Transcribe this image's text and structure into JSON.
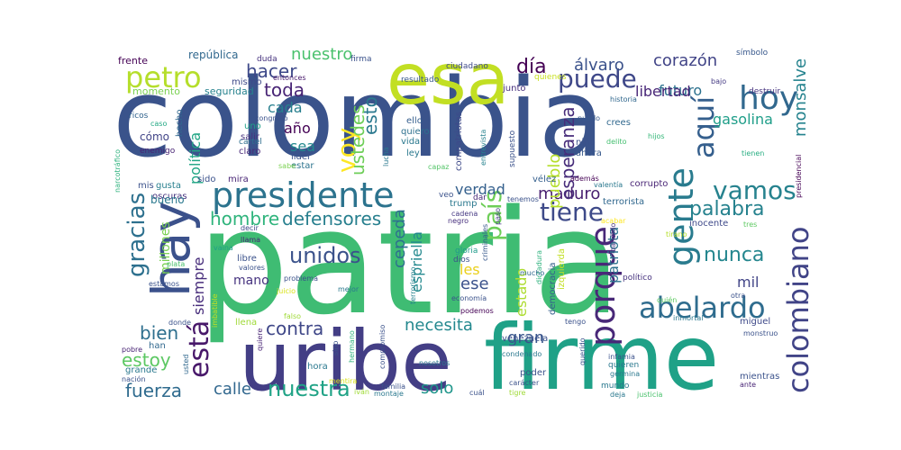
{
  "words": [
    {
      "text": "patria",
      "color": "#3fbc73"
    },
    {
      "text": "colombia",
      "color": "#3a538b"
    },
    {
      "text": "firme",
      "color": "#1fa187"
    },
    {
      "text": "uribe",
      "color": "#433e85"
    },
    {
      "text": "esa",
      "color": "#c2df23"
    },
    {
      "text": "presidente",
      "color": "#2c738e"
    },
    {
      "text": "hay",
      "color": "#3b518b"
    },
    {
      "text": "abelardo",
      "color": "#2f6c8e"
    },
    {
      "text": "gente",
      "color": "#297b8e"
    },
    {
      "text": "porque",
      "color": "#482878"
    },
    {
      "text": "hoy",
      "color": "#31688e"
    },
    {
      "text": "colombiano",
      "color": "#414487"
    },
    {
      "text": "petro",
      "color": "#b5de2b"
    },
    {
      "text": "puede",
      "color": "#3f4889"
    },
    {
      "text": "nuestra",
      "color": "#20a386"
    },
    {
      "text": "tiene",
      "color": "#3e4a89"
    },
    {
      "text": "vamos",
      "color": "#26828e"
    },
    {
      "text": "gracias",
      "color": "#2d708e"
    },
    {
      "text": "país",
      "color": "#6ece58"
    },
    {
      "text": "aquí",
      "color": "#355f8d"
    },
    {
      "text": "está",
      "color": "#48186a"
    },
    {
      "text": "palabra",
      "color": "#26828e"
    },
    {
      "text": "maduro",
      "color": "#481f70"
    },
    {
      "text": "voy",
      "color": "#fde725"
    },
    {
      "text": "esto",
      "color": "#2a788e"
    },
    {
      "text": "día",
      "color": "#440154"
    },
    {
      "text": "unidos",
      "color": "#3b528b"
    },
    {
      "text": "nunca",
      "color": "#24868e"
    },
    {
      "text": "hacer",
      "color": "#3e4989"
    },
    {
      "text": "toda",
      "color": "#482475"
    },
    {
      "text": "defensores",
      "color": "#277f8e"
    },
    {
      "text": "bien",
      "color": "#2e6f8e"
    },
    {
      "text": "hombre",
      "color": "#2fb47c"
    },
    {
      "text": "contra",
      "color": "#3f4788"
    },
    {
      "text": "necesita",
      "color": "#23888e"
    },
    {
      "text": "ustedes",
      "color": "#6ece58"
    },
    {
      "text": "esperanza",
      "color": "#472c7a"
    },
    {
      "text": "estoy",
      "color": "#5cc863"
    },
    {
      "text": "fuerza",
      "color": "#2f6b8e"
    },
    {
      "text": "calle",
      "color": "#31678e"
    },
    {
      "text": "solo",
      "color": "#1f968b"
    },
    {
      "text": "nuestro",
      "color": "#4ac16d"
    },
    {
      "text": "álvaro",
      "color": "#3b528b"
    },
    {
      "text": "corazón",
      "color": "#414487"
    },
    {
      "text": "monsalve",
      "color": "#25838e"
    },
    {
      "text": "futuro",
      "color": "#2c718e"
    },
    {
      "text": "libertad",
      "color": "#482677"
    },
    {
      "text": "gasolina",
      "color": "#1f9e89"
    },
    {
      "text": "pueblo",
      "color": "#b5de2b"
    },
    {
      "text": "verdad",
      "color": "#34608d"
    },
    {
      "text": "cepeda",
      "color": "#2d708e"
    },
    {
      "text": "espriella",
      "color": "#23898e"
    },
    {
      "text": "gran",
      "color": "#39568c"
    },
    {
      "text": "ese",
      "color": "#3b528b"
    },
    {
      "text": "les",
      "color": "#ead01a"
    },
    {
      "text": "política",
      "color": "#21a685"
    },
    {
      "text": "siempre",
      "color": "#472d7b"
    },
    {
      "text": "año",
      "color": "#440154"
    },
    {
      "text": "cada",
      "color": "#277f8e"
    },
    {
      "text": "sea",
      "color": "#23898e"
    },
    {
      "text": "patriota",
      "color": "#2c728e"
    },
    {
      "text": "estado",
      "color": "#addc30"
    },
    {
      "text": "mil",
      "color": "#414487"
    },
    {
      "text": "mano",
      "color": "#46337f"
    },
    {
      "text": "millones",
      "color": "#7ad151"
    },
    {
      "text": "república",
      "color": "#31688e"
    },
    {
      "text": "frente",
      "color": "#440154"
    },
    {
      "text": "seguridad",
      "color": "#26828e"
    },
    {
      "text": "momento",
      "color": "#7ad151"
    },
    {
      "text": "mismo",
      "color": "#3e4a89"
    },
    {
      "text": "duda",
      "color": "#46327e"
    },
    {
      "text": "firma",
      "color": "#3b528b"
    },
    {
      "text": "ciudadano",
      "color": "#3e4989"
    },
    {
      "text": "resultado",
      "color": "#38588c"
    },
    {
      "text": "quienes",
      "color": "#c8e020"
    },
    {
      "text": "junto",
      "color": "#472f7d"
    },
    {
      "text": "entonces",
      "color": "#48196b"
    },
    {
      "text": "gloria",
      "color": "#1f9a8a"
    },
    {
      "text": "dios",
      "color": "#3b528b"
    },
    {
      "text": "ley",
      "color": "#2a788e"
    },
    {
      "text": "vida",
      "color": "#2a788e"
    },
    {
      "text": "ello",
      "color": "#355e8d"
    },
    {
      "text": "quiero",
      "color": "#2d708e"
    },
    {
      "text": "niño",
      "color": "#3b518b"
    },
    {
      "text": "ahora",
      "color": "#38598c"
    },
    {
      "text": "crees",
      "color": "#31688e"
    },
    {
      "text": "puedo",
      "color": "#38598c"
    },
    {
      "text": "delito",
      "color": "#44bf70"
    },
    {
      "text": "hijos",
      "color": "#35b779"
    },
    {
      "text": "historia",
      "color": "#31688e"
    },
    {
      "text": "bajo",
      "color": "#443a83"
    },
    {
      "text": "símbolo",
      "color": "#38588c"
    },
    {
      "text": "destruir",
      "color": "#46337f"
    },
    {
      "text": "tienen",
      "color": "#27ad81"
    },
    {
      "text": "presidencial",
      "color": "#440154"
    },
    {
      "text": "cómo",
      "color": "#414487"
    },
    {
      "text": "hecho",
      "color": "#31688e"
    },
    {
      "text": "uno",
      "color": "#1fa088"
    },
    {
      "text": "salir",
      "color": "#46327e"
    },
    {
      "text": "cartel",
      "color": "#2e6e8e"
    },
    {
      "text": "claro",
      "color": "#482878"
    },
    {
      "text": "líder",
      "color": "#3b528b"
    },
    {
      "text": "estar",
      "color": "#2c738e"
    },
    {
      "text": "enemigo",
      "color": "#482475"
    },
    {
      "text": "ricos",
      "color": "#32648e"
    },
    {
      "text": "caso",
      "color": "#22a884"
    },
    {
      "text": "congreso",
      "color": "#3b528b"
    },
    {
      "text": "sido",
      "color": "#3b528b"
    },
    {
      "text": "mira",
      "color": "#482475"
    },
    {
      "text": "mis",
      "color": "#3b528b"
    },
    {
      "text": "gusta",
      "color": "#277f8e"
    },
    {
      "text": "oscuras",
      "color": "#46337f"
    },
    {
      "text": "bueno",
      "color": "#2a788e"
    },
    {
      "text": "narcotráfico",
      "color": "#2db27d"
    },
    {
      "text": "sabe",
      "color": "#7ad151"
    },
    {
      "text": "compatriotas",
      "color": "#3e4989"
    },
    {
      "text": "entrevista",
      "color": "#26828e"
    },
    {
      "text": "supuesto",
      "color": "#3b528b"
    },
    {
      "text": "capaz",
      "color": "#54c568"
    },
    {
      "text": "valentía",
      "color": "#2a788e"
    },
    {
      "text": "además",
      "color": "#440154"
    },
    {
      "text": "vélez",
      "color": "#355f8d"
    },
    {
      "text": "corrupto",
      "color": "#482475"
    },
    {
      "text": "terrorista",
      "color": "#31688e"
    },
    {
      "text": "tenemos",
      "color": "#3b528b"
    },
    {
      "text": "trump",
      "color": "#2a788e"
    },
    {
      "text": "veo",
      "color": "#3b528b"
    },
    {
      "text": "dar",
      "color": "#482878"
    },
    {
      "text": "cadena",
      "color": "#453882"
    },
    {
      "text": "negro",
      "color": "#472f7d"
    },
    {
      "text": "paso",
      "color": "#433e85"
    },
    {
      "text": "criminales",
      "color": "#38588c"
    },
    {
      "text": "inocente",
      "color": "#3e4989"
    },
    {
      "text": "tres",
      "color": "#5ec962"
    },
    {
      "text": "acabar",
      "color": "#fde725"
    },
    {
      "text": "tirano",
      "color": "#b5de2b"
    },
    {
      "text": "bandido",
      "color": "#46337f"
    },
    {
      "text": "lucha",
      "color": "#2a788e"
    },
    {
      "text": "izquierda",
      "color": "#c2df23"
    },
    {
      "text": "democracia",
      "color": "#355f8d"
    },
    {
      "text": "dictadura",
      "color": "#2db27d"
    },
    {
      "text": "mucho",
      "color": "#31688e"
    },
    {
      "text": "político",
      "color": "#46327e"
    },
    {
      "text": "quién",
      "color": "#5ec962"
    },
    {
      "text": "otra",
      "color": "#3b528b"
    },
    {
      "text": "llama",
      "color": "#482475"
    },
    {
      "text": "decir",
      "color": "#3e4989"
    },
    {
      "text": "vaina",
      "color": "#1fa088"
    },
    {
      "text": "libre",
      "color": "#3b528b"
    },
    {
      "text": "valores",
      "color": "#3b528b"
    },
    {
      "text": "juicio",
      "color": "#d8e219"
    },
    {
      "text": "problema",
      "color": "#3b528b"
    },
    {
      "text": "mejor",
      "color": "#2a788e"
    },
    {
      "text": "terrorismo",
      "color": "#26828e"
    },
    {
      "text": "economía",
      "color": "#3b528b"
    },
    {
      "text": "podemos",
      "color": "#440154"
    },
    {
      "text": "venezuela",
      "color": "#3b528b"
    },
    {
      "text": "tengo",
      "color": "#3b528b"
    },
    {
      "text": "inmortal",
      "color": "#2a788e"
    },
    {
      "text": "miguel",
      "color": "#3e4989"
    },
    {
      "text": "monstruo",
      "color": "#3b528b"
    },
    {
      "text": "plata",
      "color": "#4ac16d"
    },
    {
      "text": "estamos",
      "color": "#3b528b"
    },
    {
      "text": "imbatible",
      "color": "#c2df23"
    },
    {
      "text": "donde",
      "color": "#3b528b"
    },
    {
      "text": "llena",
      "color": "#a0da39"
    },
    {
      "text": "falso",
      "color": "#a0da39"
    },
    {
      "text": "pobre",
      "color": "#482475"
    },
    {
      "text": "han",
      "color": "#31688e"
    },
    {
      "text": "quiere",
      "color": "#482475"
    },
    {
      "text": "sino",
      "color": "#3b528b"
    },
    {
      "text": "hermano",
      "color": "#2db27d"
    },
    {
      "text": "compromiso",
      "color": "#3b528b"
    },
    {
      "text": "nosotros",
      "color": "#2a788e"
    },
    {
      "text": "condenado",
      "color": "#2a788e"
    },
    {
      "text": "querido",
      "color": "#3b528b"
    },
    {
      "text": "infamia",
      "color": "#3b528b"
    },
    {
      "text": "quieren",
      "color": "#2a788e"
    },
    {
      "text": "germina",
      "color": "#2a788e"
    },
    {
      "text": "mientras",
      "color": "#3b528b"
    },
    {
      "text": "ante",
      "color": "#482475"
    },
    {
      "text": "grande",
      "color": "#2a788e"
    },
    {
      "text": "usted",
      "color": "#31688e"
    },
    {
      "text": "nación",
      "color": "#3b528b"
    },
    {
      "text": "hora",
      "color": "#2a788e"
    },
    {
      "text": "mentira",
      "color": "#d8e219"
    },
    {
      "text": "familia",
      "color": "#3b528b"
    },
    {
      "text": "montaje",
      "color": "#2a788e"
    },
    {
      "text": "iván",
      "color": "#a0da39"
    },
    {
      "text": "cuál",
      "color": "#3b528b"
    },
    {
      "text": "tigre",
      "color": "#a0da39"
    },
    {
      "text": "mundo",
      "color": "#2a788e"
    },
    {
      "text": "carácter",
      "color": "#3b528b"
    },
    {
      "text": "poder",
      "color": "#3b528b"
    },
    {
      "text": "deja",
      "color": "#2a788e"
    },
    {
      "text": "justicia",
      "color": "#4ac16d"
    }
  ]
}
